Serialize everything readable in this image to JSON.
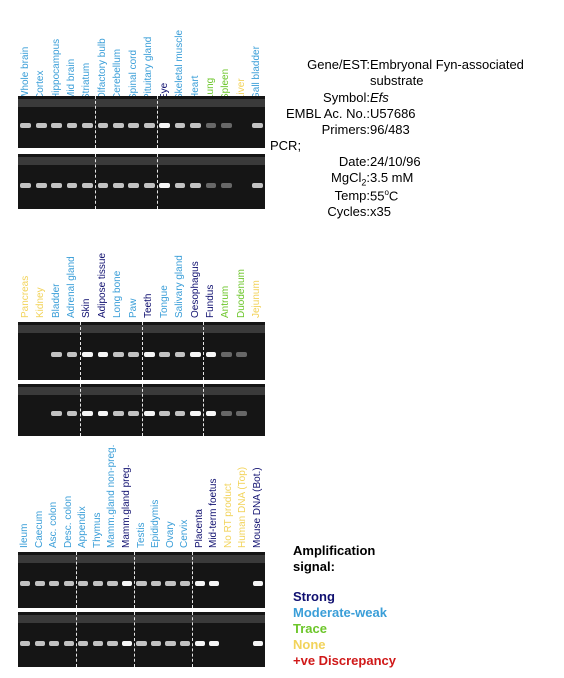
{
  "colors": {
    "strong": "#101070",
    "moderate": "#3a9ed8",
    "trace": "#6cc62a",
    "none": "#f2d35a",
    "discrepancy": "#d01818"
  },
  "panels": [
    {
      "lanes": [
        {
          "label": "Whole brain",
          "signal": "moderate"
        },
        {
          "label": "Cortex",
          "signal": "moderate"
        },
        {
          "label": "Hippocampus",
          "signal": "moderate"
        },
        {
          "label": "Mid brain",
          "signal": "moderate"
        },
        {
          "label": "Striatum",
          "signal": "moderate"
        },
        {
          "label": "Olfactory bulb",
          "signal": "moderate"
        },
        {
          "label": "Cerebellum",
          "signal": "moderate"
        },
        {
          "label": "Spinal cord",
          "signal": "moderate"
        },
        {
          "label": "Pituitary gland",
          "signal": "moderate"
        },
        {
          "label": "Eye",
          "signal": "strong"
        },
        {
          "label": "Skeletal muscle",
          "signal": "moderate"
        },
        {
          "label": "Heart",
          "signal": "moderate"
        },
        {
          "label": "Lung",
          "signal": "trace"
        },
        {
          "label": "Spleen",
          "signal": "trace"
        },
        {
          "label": "Liver",
          "signal": "none"
        },
        {
          "label": "Gall bladder",
          "signal": "moderate"
        }
      ],
      "dividers_after": [
        4,
        8
      ]
    },
    {
      "lanes": [
        {
          "label": "Pancreas",
          "signal": "none"
        },
        {
          "label": "Kidney",
          "signal": "none"
        },
        {
          "label": "Bladder",
          "signal": "moderate"
        },
        {
          "label": "Adrenal gland",
          "signal": "moderate"
        },
        {
          "label": "Skin",
          "signal": "strong"
        },
        {
          "label": "Adipose tissue",
          "signal": "strong"
        },
        {
          "label": "Long bone",
          "signal": "moderate"
        },
        {
          "label": "Paw",
          "signal": "moderate"
        },
        {
          "label": "Teeth",
          "signal": "strong"
        },
        {
          "label": "Tongue",
          "signal": "moderate"
        },
        {
          "label": "Salivary gland",
          "signal": "moderate"
        },
        {
          "label": "Oesophagus",
          "signal": "strong"
        },
        {
          "label": "Fundus",
          "signal": "strong"
        },
        {
          "label": "Antrum",
          "signal": "trace"
        },
        {
          "label": "Duodenum",
          "signal": "trace"
        },
        {
          "label": "Jejunum",
          "signal": "none"
        }
      ],
      "dividers_after": [
        3,
        7,
        11
      ]
    },
    {
      "lanes": [
        {
          "label": "Ileum",
          "signal": "moderate"
        },
        {
          "label": "Caecum",
          "signal": "moderate"
        },
        {
          "label": "Asc. colon",
          "signal": "moderate"
        },
        {
          "label": "Desc. colon",
          "signal": "moderate"
        },
        {
          "label": "Appendix",
          "signal": "moderate"
        },
        {
          "label": "Thymus",
          "signal": "moderate"
        },
        {
          "label": "Mamm.gland non-preg.",
          "signal": "moderate"
        },
        {
          "label": "Mamm.gland preg.",
          "signal": "strong"
        },
        {
          "label": "Testis",
          "signal": "moderate"
        },
        {
          "label": "Epididymis",
          "signal": "moderate"
        },
        {
          "label": "Ovary",
          "signal": "moderate"
        },
        {
          "label": "Cervix",
          "signal": "moderate"
        },
        {
          "label": "Placenta",
          "signal": "strong"
        },
        {
          "label": "Mid-term foetus",
          "signal": "strong"
        },
        {
          "label": "No RT product",
          "signal": "none"
        },
        {
          "label": "Human DNA (Top)",
          "signal": "none"
        },
        {
          "label": "Mouse DNA (Bot.)",
          "signal": "strong"
        }
      ],
      "dividers_after": [
        3,
        7,
        11
      ]
    }
  ],
  "info": {
    "gene_label": "Gene/EST:",
    "gene_value_line1": "Embryonal Fyn-associated",
    "gene_value_line2": "substrate",
    "symbol_label": "Symbol:",
    "symbol_value": "Efs",
    "embl_label": "EMBL Ac. No.:",
    "embl_value": "U57686",
    "primers_label": "Primers:",
    "primers_value": "96/483",
    "pcr_label": "PCR;",
    "date_label": "Date:",
    "date_value": "24/10/96",
    "mgcl_label_main": "MgCl",
    "mgcl_label_sub": "2",
    "mgcl_label_colon": ":",
    "mgcl_value": "3.5 mM",
    "temp_label": "Temp:",
    "temp_value_main": "55",
    "temp_value_sup": "o",
    "temp_value_unit": "C",
    "cycles_label": "Cycles:",
    "cycles_value": "x35"
  },
  "legend": {
    "title_line1": "Amplification",
    "title_line2": "signal:",
    "strong": "Strong",
    "moderate": "Moderate-weak",
    "trace": "Trace",
    "none": "None",
    "discrepancy": "+ve Discrepancy"
  }
}
